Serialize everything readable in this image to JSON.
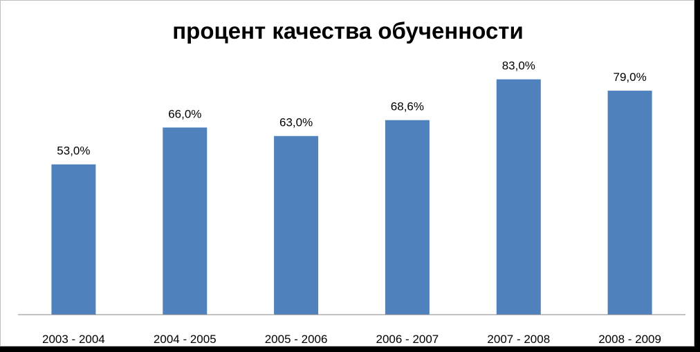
{
  "chart_data": {
    "type": "bar",
    "title": "процент качества обученности",
    "categories": [
      "2003 - 2004",
      "2004 - 2005",
      "2005 - 2006",
      "2006 - 2007",
      "2007 - 2008",
      "2008 - 2009"
    ],
    "values": [
      53.0,
      66.0,
      63.0,
      68.6,
      83.0,
      79.0
    ],
    "value_labels": [
      "53,0%",
      "66,0%",
      "63,0%",
      "68,6%",
      "83,0%",
      "79,0%"
    ],
    "xlabel": "",
    "ylabel": "",
    "ylim": [
      0,
      90
    ],
    "grid": false,
    "legend": "none",
    "bar_color": "#4f81bd",
    "axis_color": "#868686"
  }
}
